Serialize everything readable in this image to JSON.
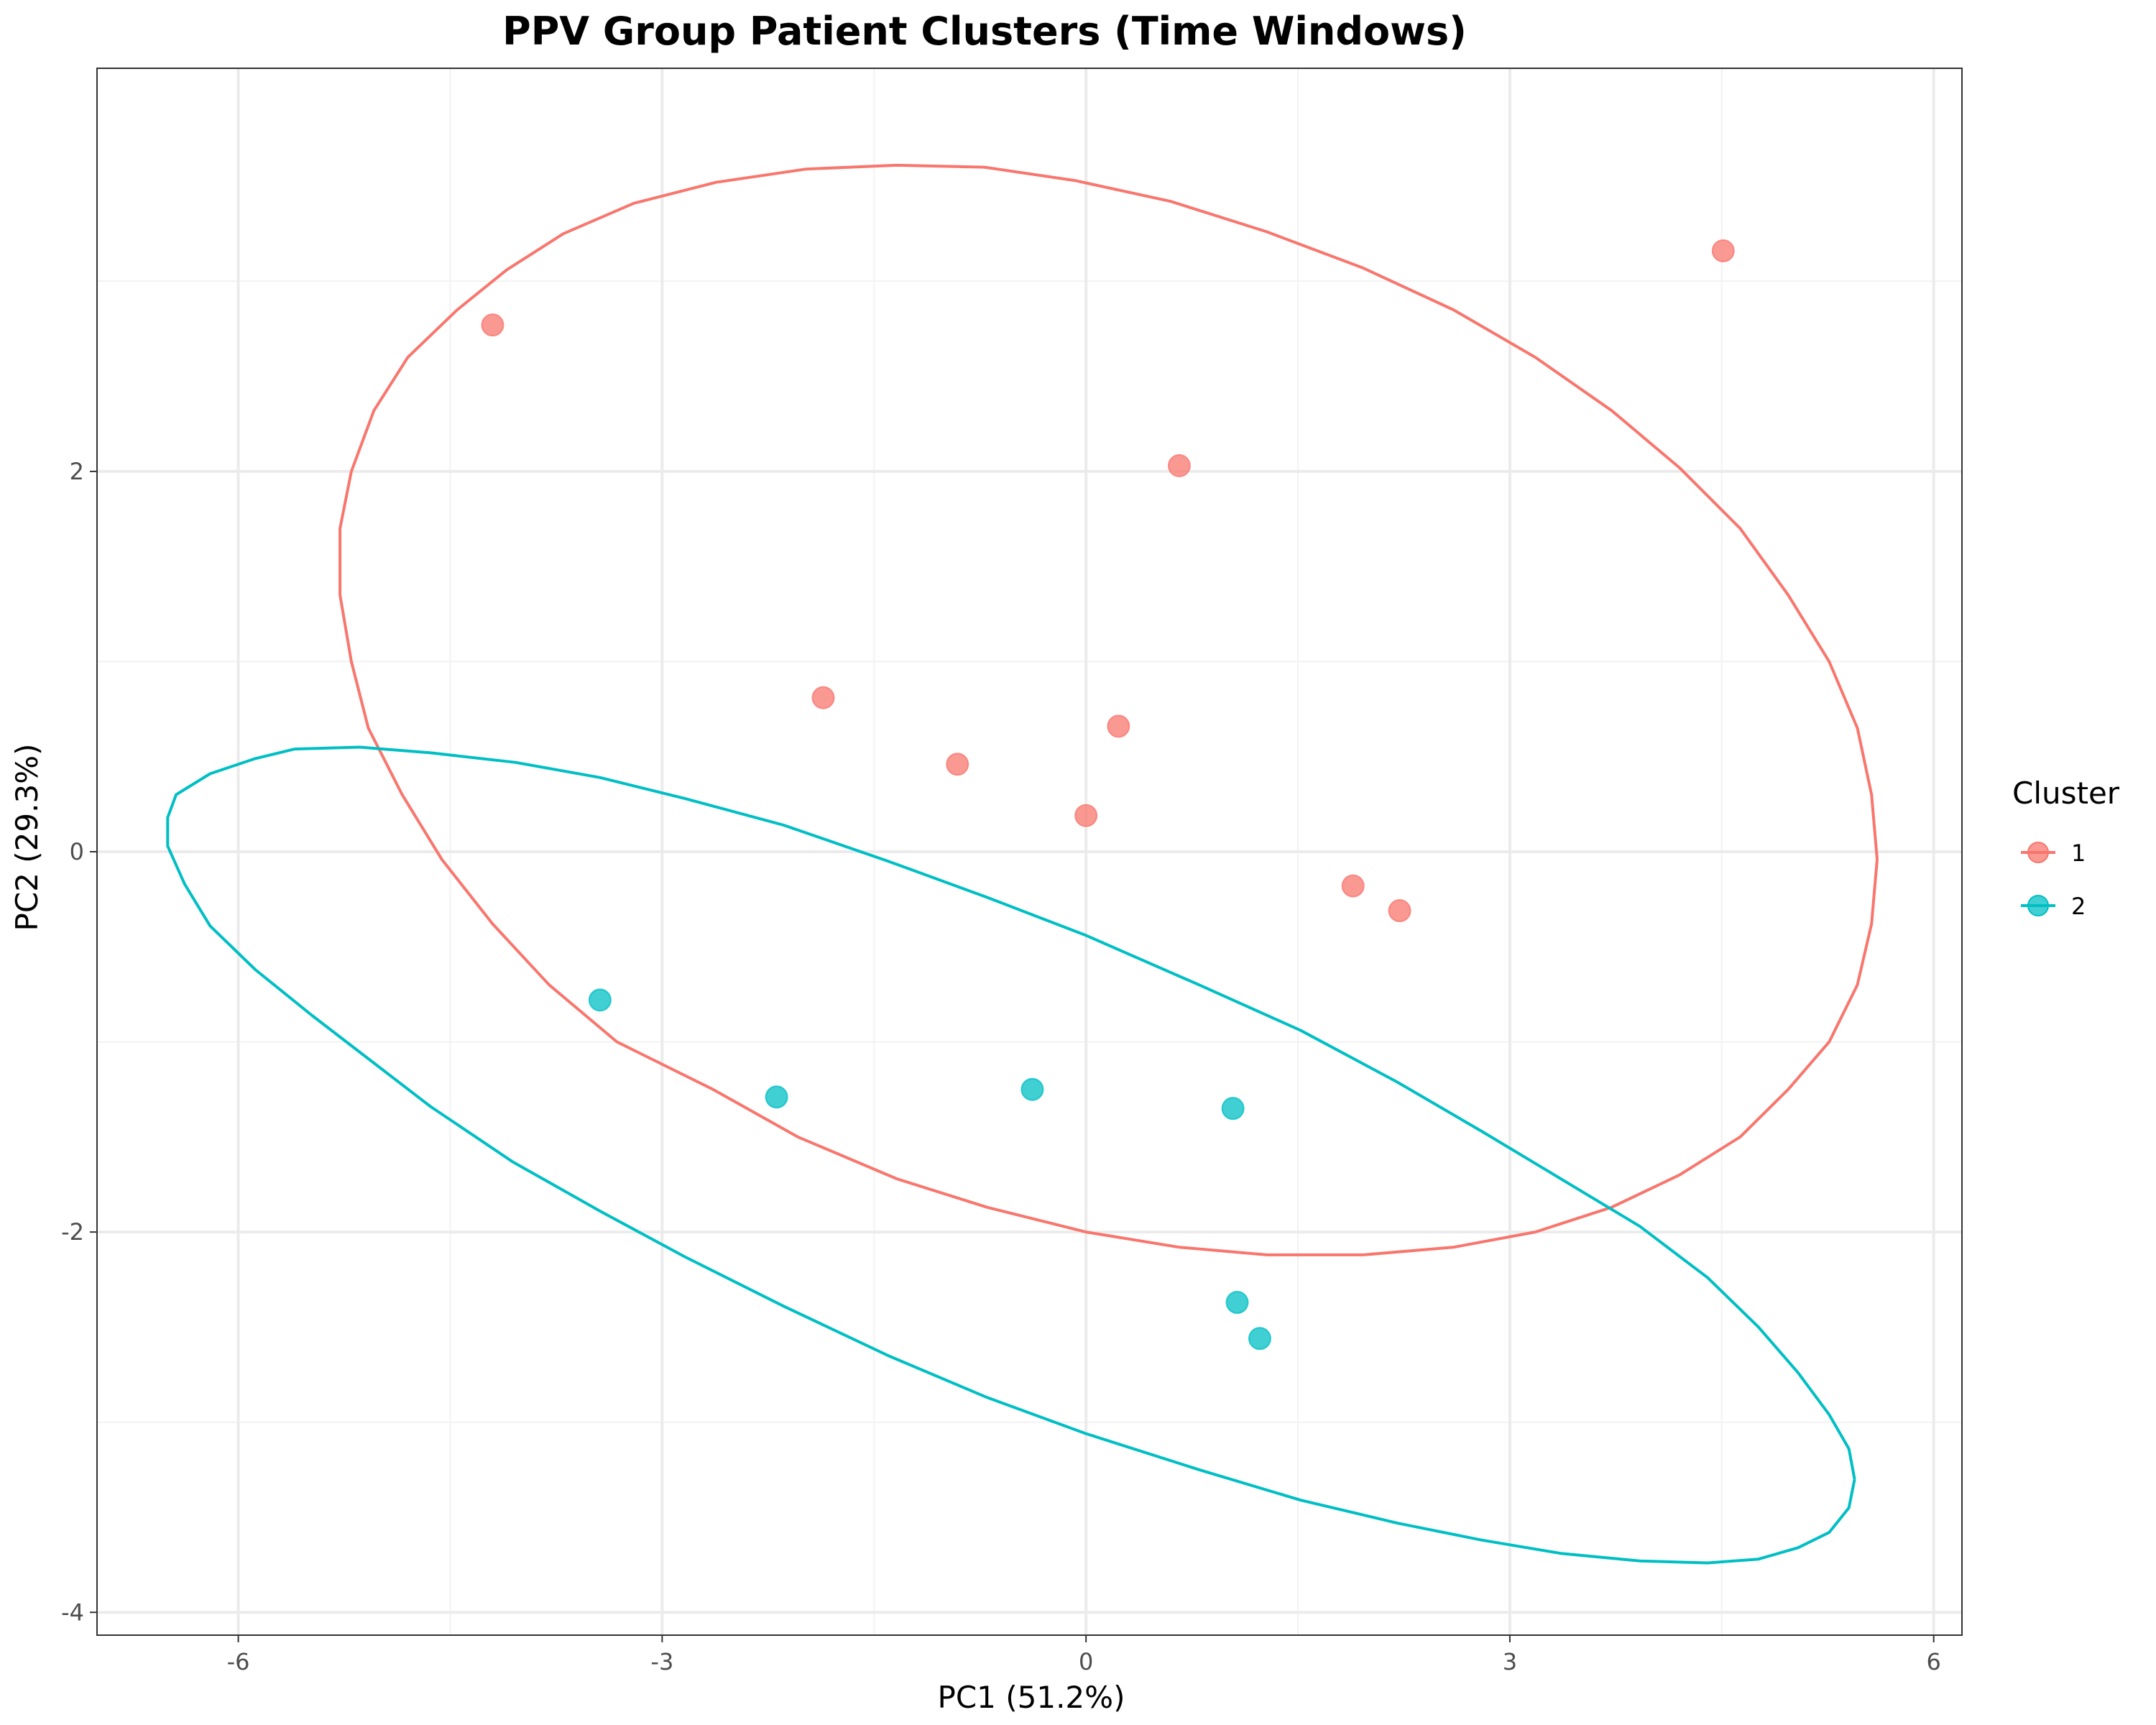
{
  "chart_data": {
    "type": "scatter",
    "title": "PPV Group Patient Clusters (Time Windows)",
    "xlabel": "PC1 (51.2%)",
    "ylabel": "PC2 (29.3%)",
    "xlim": [
      -7.0,
      6.2
    ],
    "ylim": [
      -4.12,
      4.12
    ],
    "x_ticks": [
      {
        "value": -6,
        "label": "-6"
      },
      {
        "value": -3,
        "label": "-3"
      },
      {
        "value": 0,
        "label": "0"
      },
      {
        "value": 3,
        "label": "3"
      },
      {
        "value": 6,
        "label": "6"
      }
    ],
    "y_ticks": [
      {
        "value": -4,
        "label": "-4"
      },
      {
        "value": -2,
        "label": "-2"
      },
      {
        "value": 0,
        "label": "0"
      },
      {
        "value": 2,
        "label": "2"
      }
    ],
    "x_minor": [
      -4.5,
      -1.5,
      1.5,
      4.5
    ],
    "y_minor": [
      -3,
      -1,
      1,
      3
    ],
    "grid": true,
    "legend": {
      "title": "Cluster",
      "position": "right"
    },
    "series": [
      {
        "name": "1",
        "color": "#F8766D",
        "points": [
          {
            "x": -4.2,
            "y": 2.77
          },
          {
            "x": 4.51,
            "y": 3.16
          },
          {
            "x": 0.66,
            "y": 2.03
          },
          {
            "x": -1.86,
            "y": 0.81
          },
          {
            "x": 0.23,
            "y": 0.66
          },
          {
            "x": -0.91,
            "y": 0.46
          },
          {
            "x": 0.0,
            "y": 0.19
          },
          {
            "x": 1.89,
            "y": -0.18
          },
          {
            "x": 2.22,
            "y": -0.31
          }
        ],
        "ellipse": [
          [
            5.6,
            -0.04
          ],
          [
            5.56,
            0.3
          ],
          [
            5.46,
            0.65
          ],
          [
            5.26,
            1.0
          ],
          [
            4.97,
            1.35
          ],
          [
            4.63,
            1.7
          ],
          [
            4.2,
            2.02
          ],
          [
            3.72,
            2.32
          ],
          [
            3.18,
            2.6
          ],
          [
            2.6,
            2.85
          ],
          [
            1.96,
            3.07
          ],
          [
            1.28,
            3.26
          ],
          [
            0.6,
            3.42
          ],
          [
            -0.08,
            3.53
          ],
          [
            -0.72,
            3.6
          ],
          [
            -1.34,
            3.61
          ],
          [
            -1.98,
            3.59
          ],
          [
            -2.62,
            3.52
          ],
          [
            -3.2,
            3.41
          ],
          [
            -3.7,
            3.25
          ],
          [
            -4.1,
            3.06
          ],
          [
            -4.45,
            2.85
          ],
          [
            -4.8,
            2.6
          ],
          [
            -5.04,
            2.32
          ],
          [
            -5.2,
            2.0
          ],
          [
            -5.28,
            1.7
          ],
          [
            -5.28,
            1.35
          ],
          [
            -5.2,
            1.0
          ],
          [
            -5.08,
            0.65
          ],
          [
            -4.84,
            0.3
          ],
          [
            -4.56,
            -0.04
          ],
          [
            -4.2,
            -0.38
          ],
          [
            -3.8,
            -0.7
          ],
          [
            -3.32,
            -1.0
          ],
          [
            -2.64,
            -1.25
          ],
          [
            -2.04,
            -1.5
          ],
          [
            -1.34,
            -1.72
          ],
          [
            -0.7,
            -1.87
          ],
          [
            0.0,
            -2.0
          ],
          [
            0.66,
            -2.08
          ],
          [
            1.28,
            -2.12
          ],
          [
            1.96,
            -2.12
          ],
          [
            2.6,
            -2.08
          ],
          [
            3.18,
            -2.0
          ],
          [
            3.72,
            -1.87
          ],
          [
            4.2,
            -1.7
          ],
          [
            4.63,
            -1.5
          ],
          [
            4.97,
            -1.25
          ],
          [
            5.26,
            -1.0
          ],
          [
            5.46,
            -0.7
          ],
          [
            5.56,
            -0.38
          ],
          [
            5.6,
            -0.04
          ]
        ]
      },
      {
        "name": "2",
        "color": "#00BFC4",
        "points": [
          {
            "x": -3.44,
            "y": -0.78
          },
          {
            "x": -2.19,
            "y": -1.29
          },
          {
            "x": -0.38,
            "y": -1.25
          },
          {
            "x": 1.04,
            "y": -1.35
          },
          {
            "x": 1.07,
            "y": -2.37
          },
          {
            "x": 1.23,
            "y": -2.56
          }
        ],
        "ellipse": [
          [
            5.44,
            -3.3
          ],
          [
            5.4,
            -3.14
          ],
          [
            5.26,
            -2.96
          ],
          [
            5.04,
            -2.74
          ],
          [
            4.76,
            -2.5
          ],
          [
            4.4,
            -2.24
          ],
          [
            3.92,
            -1.97
          ],
          [
            3.36,
            -1.72
          ],
          [
            2.8,
            -1.47
          ],
          [
            2.2,
            -1.21
          ],
          [
            1.52,
            -0.94
          ],
          [
            0.8,
            -0.7
          ],
          [
            0.0,
            -0.44
          ],
          [
            -0.7,
            -0.24
          ],
          [
            -1.4,
            -0.05
          ],
          [
            -2.14,
            0.14
          ],
          [
            -2.84,
            0.28
          ],
          [
            -3.44,
            0.39
          ],
          [
            -4.04,
            0.47
          ],
          [
            -4.64,
            0.52
          ],
          [
            -5.14,
            0.55
          ],
          [
            -5.6,
            0.54
          ],
          [
            -5.88,
            0.49
          ],
          [
            -6.2,
            0.41
          ],
          [
            -6.44,
            0.3
          ],
          [
            -6.5,
            0.18
          ],
          [
            -6.5,
            0.03
          ],
          [
            -6.38,
            -0.17
          ],
          [
            -6.2,
            -0.39
          ],
          [
            -5.88,
            -0.62
          ],
          [
            -5.48,
            -0.86
          ],
          [
            -5.06,
            -1.1
          ],
          [
            -4.64,
            -1.34
          ],
          [
            -4.06,
            -1.63
          ],
          [
            -3.44,
            -1.89
          ],
          [
            -2.84,
            -2.13
          ],
          [
            -2.14,
            -2.39
          ],
          [
            -1.4,
            -2.65
          ],
          [
            -0.7,
            -2.87
          ],
          [
            0.0,
            -3.06
          ],
          [
            0.8,
            -3.25
          ],
          [
            1.52,
            -3.41
          ],
          [
            2.2,
            -3.53
          ],
          [
            2.8,
            -3.62
          ],
          [
            3.36,
            -3.69
          ],
          [
            3.92,
            -3.73
          ],
          [
            4.4,
            -3.74
          ],
          [
            4.76,
            -3.72
          ],
          [
            5.04,
            -3.66
          ],
          [
            5.26,
            -3.58
          ],
          [
            5.4,
            -3.45
          ],
          [
            5.44,
            -3.3
          ]
        ]
      }
    ]
  }
}
